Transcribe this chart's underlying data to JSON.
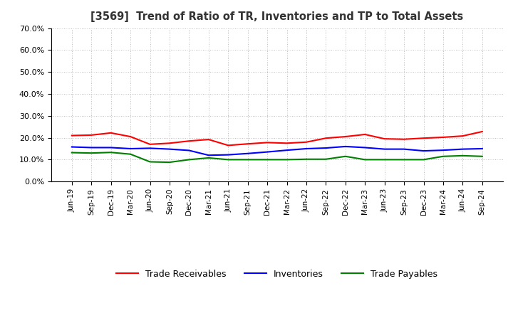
{
  "title": "[3569]  Trend of Ratio of TR, Inventories and TP to Total Assets",
  "labels": [
    "Jun-19",
    "Sep-19",
    "Dec-19",
    "Mar-20",
    "Jun-20",
    "Sep-20",
    "Dec-20",
    "Mar-21",
    "Jun-21",
    "Sep-21",
    "Dec-21",
    "Mar-22",
    "Jun-22",
    "Sep-22",
    "Dec-22",
    "Mar-23",
    "Jun-23",
    "Sep-23",
    "Dec-23",
    "Mar-24",
    "Jun-24",
    "Sep-24"
  ],
  "trade_receivables": [
    0.21,
    0.212,
    0.222,
    0.205,
    0.17,
    0.175,
    0.185,
    0.192,
    0.165,
    0.172,
    0.178,
    0.175,
    0.18,
    0.198,
    0.205,
    0.215,
    0.195,
    0.193,
    0.198,
    0.202,
    0.208,
    0.228
  ],
  "inventories": [
    0.158,
    0.155,
    0.155,
    0.15,
    0.152,
    0.148,
    0.142,
    0.12,
    0.122,
    0.128,
    0.135,
    0.143,
    0.15,
    0.153,
    0.16,
    0.155,
    0.148,
    0.148,
    0.14,
    0.143,
    0.148,
    0.15
  ],
  "trade_payables": [
    0.132,
    0.13,
    0.133,
    0.125,
    0.09,
    0.088,
    0.1,
    0.108,
    0.1,
    0.1,
    0.1,
    0.1,
    0.102,
    0.102,
    0.115,
    0.1,
    0.1,
    0.1,
    0.1,
    0.115,
    0.118,
    0.115
  ],
  "tr_color": "#ff0000",
  "inv_color": "#0000ff",
  "tp_color": "#008000",
  "background_color": "#ffffff",
  "grid_color": "#aaaaaa",
  "ylim": [
    0.0,
    0.7
  ],
  "yticks": [
    0.0,
    0.1,
    0.2,
    0.3,
    0.4,
    0.5,
    0.6,
    0.7
  ],
  "legend_labels": [
    "Trade Receivables",
    "Inventories",
    "Trade Payables"
  ]
}
